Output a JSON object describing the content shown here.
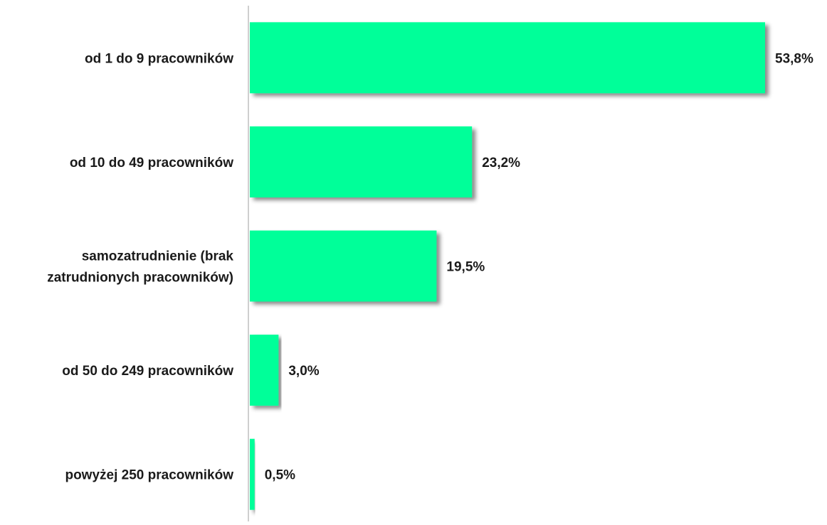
{
  "chart_data": {
    "type": "bar",
    "orientation": "horizontal",
    "categories": [
      [
        "od 1 do 9 pracowników"
      ],
      [
        "od 10 do 49 pracowników"
      ],
      [
        "samozatrudnienie (brak",
        "zatrudnionych pracowników)"
      ],
      [
        "od 50 do 249 pracowników"
      ],
      [
        "powyżej 250 pracowników"
      ]
    ],
    "values": [
      53.8,
      23.2,
      19.5,
      3.0,
      0.5
    ],
    "value_labels": [
      "53,8%",
      "23,2%",
      "19,5%",
      "3,0%",
      "0,5%"
    ],
    "unit": "%",
    "xlim": [
      0,
      53.8
    ],
    "grid": false,
    "legend": "none",
    "bar_color": "#00ff99",
    "axis_color": "#bfbfbf"
  }
}
